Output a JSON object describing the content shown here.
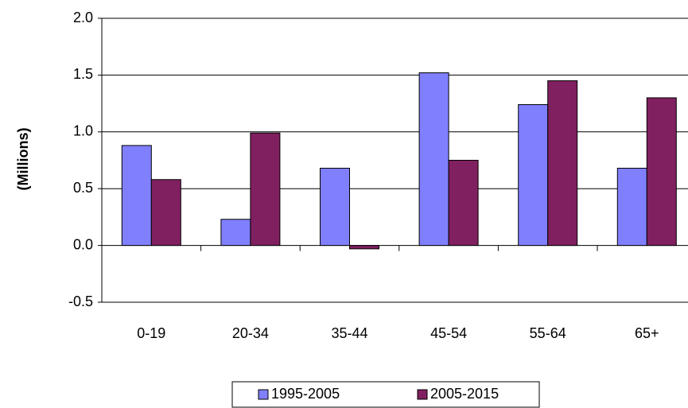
{
  "chart_data": {
    "type": "bar",
    "y_label": "(Millions)",
    "categories": [
      "0-19",
      "20-34",
      "35-44",
      "45-54",
      "55-64",
      "65+"
    ],
    "series": [
      {
        "name": "1995-2005",
        "color": "#8080ff",
        "values": [
          0.88,
          0.23,
          0.68,
          1.52,
          1.24,
          0.68
        ]
      },
      {
        "name": "2005-2015",
        "color": "#802060",
        "values": [
          0.58,
          0.99,
          -0.03,
          0.75,
          1.45,
          1.3
        ]
      }
    ],
    "ylim": [
      -0.5,
      2.0
    ],
    "yticks": [
      -0.5,
      {
        "value": 0,
        "label": "0.0"
      },
      0.5,
      {
        "value": 1,
        "label": "1.0"
      },
      1.5,
      {
        "value": 2,
        "label": "2.0"
      }
    ],
    "grid": true
  }
}
